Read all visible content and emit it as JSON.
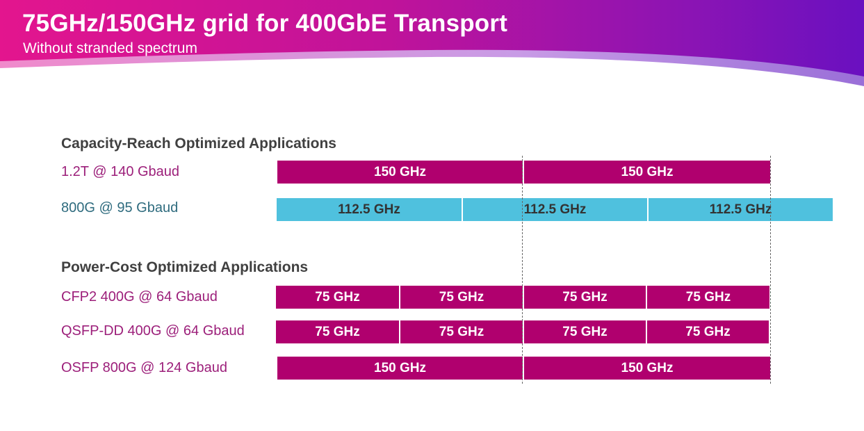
{
  "header": {
    "title": "75GHz/150GHz grid for 400GbE Transport",
    "subtitle": "Without stranded spectrum"
  },
  "colors": {
    "magenta": "#b0006e",
    "cyan": "#4fc1de",
    "label_magenta": "#9c1f7a",
    "label_teal": "#2e6b7e"
  },
  "sections": [
    {
      "heading": "Capacity-Reach Optimized Applications",
      "rows": [
        {
          "label": "1.2T @ 140 Gbaud",
          "segments": [
            "150 GHz",
            "150 GHz"
          ]
        },
        {
          "label": "800G @ 95 Gbaud",
          "segments": [
            "112.5 GHz",
            "112.5 GHz",
            "112.5 GHz"
          ]
        }
      ]
    },
    {
      "heading": "Power-Cost Optimized Applications",
      "rows": [
        {
          "label": "CFP2 400G @ 64 Gbaud",
          "segments": [
            "75 GHz",
            "75 GHz",
            "75 GHz",
            "75 GHz"
          ]
        },
        {
          "label": "QSFP-DD 400G @ 64 Gbaud",
          "segments": [
            "75 GHz",
            "75 GHz",
            "75 GHz",
            "75 GHz"
          ]
        },
        {
          "label": "OSFP 800G @ 124 Gbaud",
          "segments": [
            "150 GHz",
            "150 GHz"
          ]
        }
      ]
    }
  ]
}
